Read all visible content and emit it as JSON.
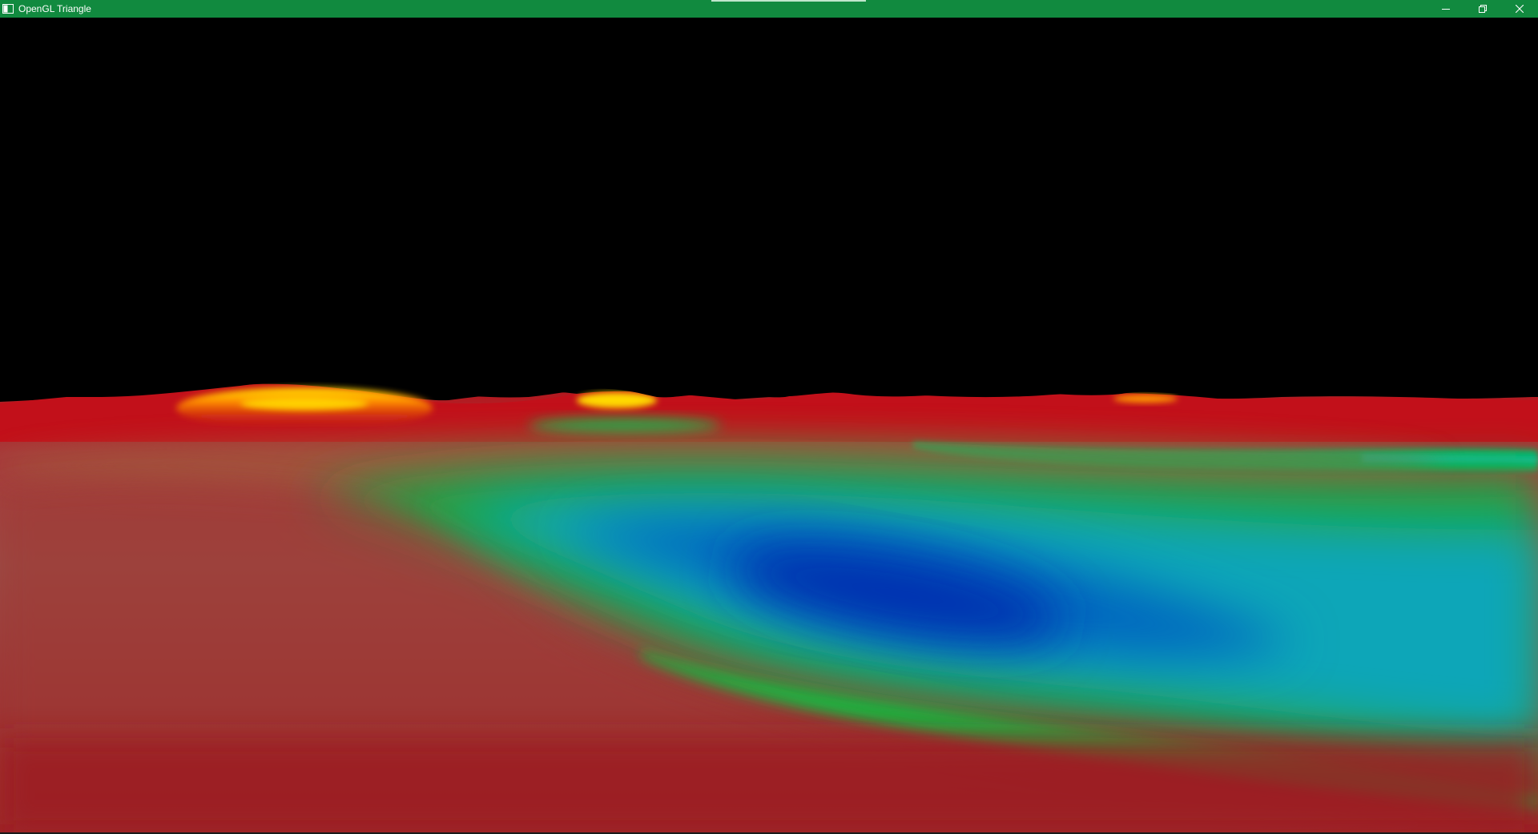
{
  "window": {
    "title": "OpenGL Triangle",
    "titlebar_color": "#118a3f",
    "icons": {
      "app": "app-window-icon",
      "minimize": "minimize-icon",
      "restore": "restore-icon",
      "close": "close-icon"
    }
  },
  "scene": {
    "background": "#000000",
    "terrain_colors": {
      "low": "#0033b0",
      "mid_low": "#00a0c0",
      "mid": "#1fb040",
      "mid_high": "#8a7a58",
      "high": "#c0101c",
      "peak": "#ffd000"
    }
  }
}
